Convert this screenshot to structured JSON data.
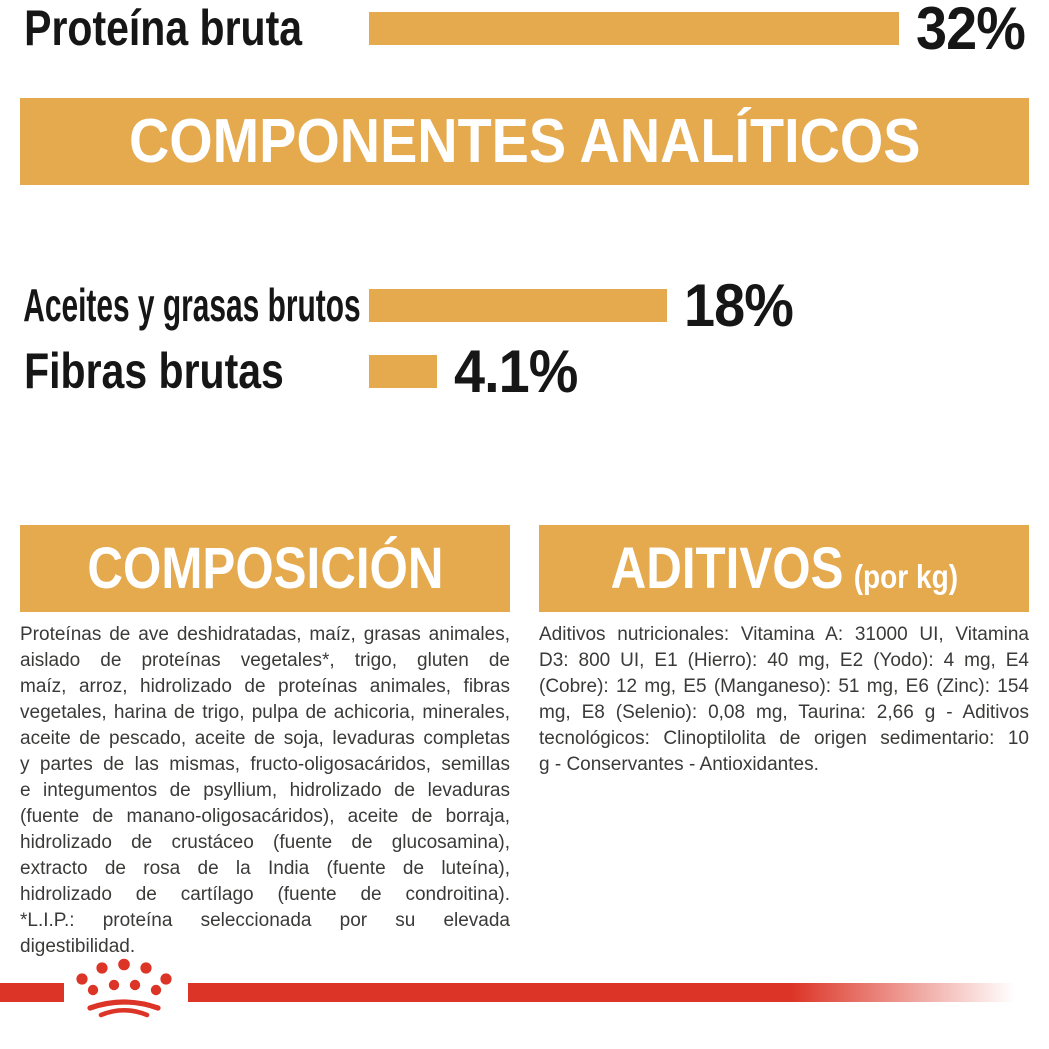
{
  "colors": {
    "gold": "#E5A94E",
    "red": "#DC3426",
    "chart_text": "#161616",
    "body_text": "#3A3A39",
    "header_text": "#FFFFFF",
    "background": "#FFFFFF"
  },
  "analytical_components": {
    "title": "COMPONENTES ANALÍTICOS",
    "rows": [
      {
        "label": "Proteína bruta",
        "value": 32,
        "value_label": "32%"
      },
      {
        "label": "Aceites y grasas brutos",
        "value": 18,
        "value_label": "18%"
      },
      {
        "label": "Fibras brutas",
        "value": 4.1,
        "value_label": "4.1%"
      }
    ]
  },
  "chart_data": {
    "type": "bar",
    "orientation": "horizontal",
    "title": "COMPONENTES ANALÍTICOS",
    "categories": [
      "Proteína bruta",
      "Aceites y grasas brutos",
      "Fibras brutas"
    ],
    "values": [
      32,
      18,
      4.1
    ],
    "value_labels": [
      "32%",
      "18%",
      "4.1%"
    ],
    "xlim": [
      0,
      32
    ],
    "bar_color": "#E5A94E",
    "grid": false,
    "legend": false,
    "value_label_position": "end-of-bar"
  },
  "composition": {
    "title": "COMPOSICIÓN",
    "lines": [
      "Proteínas de ave deshidratadas, maíz, grasas animales,",
      "aislado de proteínas vegetales*, trigo, gluten de",
      "maíz, arroz, hidrolizado de proteínas animales, fibras",
      "vegetales, harina de trigo, pulpa de achicoria, minerales,",
      "aceite de pescado, aceite de soja, levaduras completas",
      "y partes de las mismas, fructo-oligosacáridos, semillas",
      "e integumentos de psyllium, hidrolizado de levaduras",
      "(fuente de manano-oligosacáridos), aceite de borraja,",
      "hidrolizado de crustáceo (fuente de glucosamina),",
      "extracto de rosa de la India (fuente de luteína),",
      "hidrolizado de cartílago (fuente de condroitina).",
      "*L.I.P.: proteína seleccionada por su elevada",
      "digestibilidad."
    ]
  },
  "additives": {
    "title": "ADITIVOS",
    "title_suffix": "(por kg)",
    "lines": [
      "Aditivos nutricionales: Vitamina A: 31000 UI, Vitamina",
      "D3: 800 UI, E1 (Hierro): 40 mg, E2 (Yodo): 4 mg, E4",
      "(Cobre): 12 mg, E5 (Manganeso): 51 mg, E6 (Zinc): 154",
      "mg, E8 (Selenio): 0,08 mg, Taurina: 2,66 g - Aditivos",
      "tecnológicos: Clinoptilolita de origen sedimentario: 10",
      "g - Conservantes - Antioxidantes."
    ]
  },
  "footer": {
    "logo_icon": "royal-canin-crown-icon"
  }
}
